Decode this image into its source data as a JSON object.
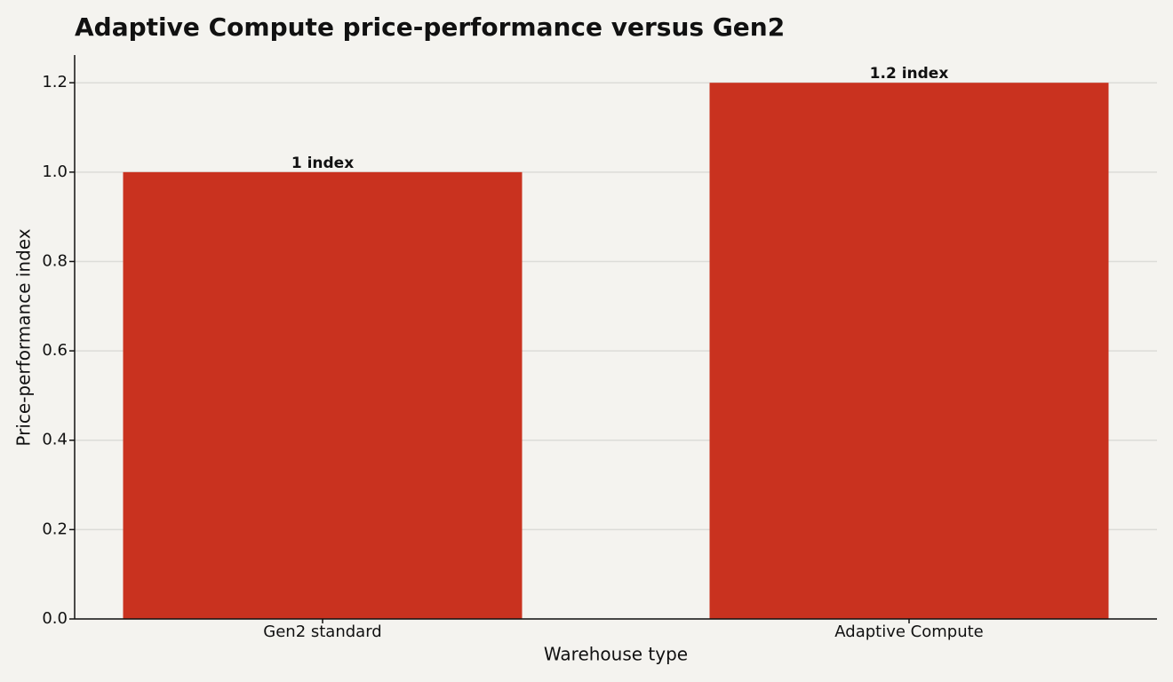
{
  "chart_data": {
    "type": "bar",
    "title": "Adaptive Compute price-performance versus Gen2",
    "x_label": "Warehouse type",
    "y_label": "Price-performance index",
    "categories": [
      "Gen2 standard",
      "Adaptive Compute"
    ],
    "values": [
      1,
      1.2
    ],
    "value_labels": [
      "1 index",
      "1.2 index"
    ],
    "color": "#c9321f",
    "ylim": [
      0,
      1.262
    ],
    "yticks": [
      {
        "value": 0,
        "label": "0.0"
      },
      0.2,
      0.4,
      0.6,
      0.8,
      {
        "value": 1,
        "label": "1.0"
      },
      1.2
    ],
    "grid": true
  }
}
